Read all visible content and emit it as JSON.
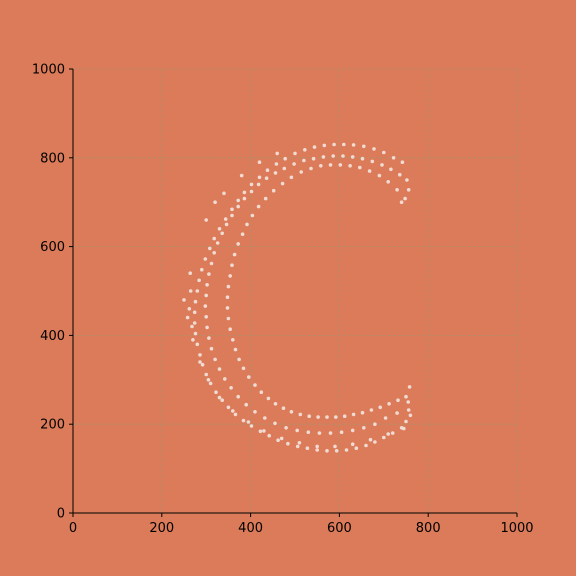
{
  "chart_data": {
    "type": "scatter",
    "title": "",
    "xlabel": "",
    "ylabel": "",
    "xlim": [
      0,
      1000
    ],
    "ylim": [
      0,
      1000
    ],
    "x_ticks": [
      "0",
      "200",
      "400",
      "600",
      "800",
      "1000"
    ],
    "y_ticks": [
      "0",
      "200",
      "400",
      "600",
      "800",
      "1000"
    ],
    "x_tick_values": [
      0,
      200,
      400,
      600,
      800,
      1000
    ],
    "y_tick_values": [
      0,
      200,
      400,
      600,
      800,
      1000
    ],
    "grid": true,
    "point_color": "#f2e6e0",
    "background_color": "#dc7b59",
    "series": [
      {
        "shape": "letter C",
        "points": [
          [
            742,
            790
          ],
          [
            722,
            800
          ],
          [
            700,
            812
          ],
          [
            678,
            820
          ],
          [
            655,
            826
          ],
          [
            632,
            829
          ],
          [
            610,
            830
          ],
          [
            588,
            830
          ],
          [
            566,
            828
          ],
          [
            544,
            824
          ],
          [
            522,
            818
          ],
          [
            500,
            810
          ],
          [
            478,
            798
          ],
          [
            458,
            786
          ],
          [
            438,
            772
          ],
          [
            420,
            756
          ],
          [
            402,
            740
          ],
          [
            386,
            722
          ],
          [
            372,
            704
          ],
          [
            358,
            684
          ],
          [
            344,
            662
          ],
          [
            330,
            640
          ],
          [
            318,
            618
          ],
          [
            308,
            596
          ],
          [
            298,
            572
          ],
          [
            290,
            548
          ],
          [
            284,
            524
          ],
          [
            280,
            500
          ],
          [
            276,
            476
          ],
          [
            274,
            452
          ],
          [
            274,
            428
          ],
          [
            276,
            404
          ],
          [
            280,
            380
          ],
          [
            286,
            356
          ],
          [
            292,
            334
          ],
          [
            300,
            312
          ],
          [
            310,
            292
          ],
          [
            322,
            272
          ],
          [
            336,
            254
          ],
          [
            350,
            238
          ],
          [
            366,
            222
          ],
          [
            384,
            208
          ],
          [
            402,
            196
          ],
          [
            422,
            184
          ],
          [
            442,
            174
          ],
          [
            462,
            164
          ],
          [
            484,
            156
          ],
          [
            506,
            150
          ],
          [
            528,
            146
          ],
          [
            550,
            142
          ],
          [
            572,
            140
          ],
          [
            594,
            140
          ],
          [
            616,
            142
          ],
          [
            638,
            146
          ],
          [
            660,
            152
          ],
          [
            680,
            160
          ],
          [
            700,
            170
          ],
          [
            720,
            180
          ],
          [
            740,
            192
          ],
          [
            750,
            206
          ],
          [
            748,
            708
          ],
          [
            730,
            728
          ],
          [
            710,
            746
          ],
          [
            690,
            760
          ],
          [
            668,
            770
          ],
          [
            646,
            778
          ],
          [
            624,
            782
          ],
          [
            602,
            784
          ],
          [
            580,
            784
          ],
          [
            558,
            782
          ],
          [
            536,
            776
          ],
          [
            514,
            768
          ],
          [
            492,
            756
          ],
          [
            472,
            742
          ],
          [
            452,
            726
          ],
          [
            434,
            708
          ],
          [
            418,
            690
          ],
          [
            404,
            670
          ],
          [
            392,
            650
          ],
          [
            382,
            628
          ],
          [
            372,
            606
          ],
          [
            364,
            582
          ],
          [
            358,
            558
          ],
          [
            354,
            534
          ],
          [
            350,
            510
          ],
          [
            348,
            486
          ],
          [
            348,
            462
          ],
          [
            350,
            438
          ],
          [
            354,
            414
          ],
          [
            360,
            390
          ],
          [
            366,
            368
          ],
          [
            374,
            346
          ],
          [
            384,
            326
          ],
          [
            396,
            306
          ],
          [
            410,
            288
          ],
          [
            424,
            272
          ],
          [
            440,
            258
          ],
          [
            456,
            246
          ],
          [
            474,
            236
          ],
          [
            492,
            228
          ],
          [
            512,
            222
          ],
          [
            532,
            218
          ],
          [
            552,
            216
          ],
          [
            572,
            216
          ],
          [
            592,
            216
          ],
          [
            612,
            218
          ],
          [
            632,
            222
          ],
          [
            652,
            226
          ],
          [
            672,
            232
          ],
          [
            692,
            238
          ],
          [
            712,
            246
          ],
          [
            732,
            254
          ],
          [
            750,
            262
          ],
          [
            758,
            284
          ],
          [
            756,
            232
          ],
          [
            704,
            214
          ],
          [
            680,
            200
          ],
          [
            655,
            192
          ],
          [
            630,
            186
          ],
          [
            605,
            182
          ],
          [
            580,
            180
          ],
          [
            555,
            180
          ],
          [
            530,
            182
          ],
          [
            505,
            186
          ],
          [
            480,
            192
          ],
          [
            455,
            202
          ],
          [
            432,
            214
          ],
          [
            410,
            228
          ],
          [
            390,
            244
          ],
          [
            372,
            262
          ],
          [
            356,
            282
          ],
          [
            342,
            302
          ],
          [
            330,
            324
          ],
          [
            320,
            346
          ],
          [
            312,
            370
          ],
          [
            306,
            394
          ],
          [
            302,
            418
          ],
          [
            300,
            442
          ],
          [
            298,
            466
          ],
          [
            300,
            490
          ],
          [
            302,
            514
          ],
          [
            306,
            538
          ],
          [
            312,
            562
          ],
          [
            318,
            586
          ],
          [
            326,
            608
          ],
          [
            336,
            630
          ],
          [
            346,
            650
          ],
          [
            358,
            670
          ],
          [
            372,
            690
          ],
          [
            386,
            708
          ],
          [
            402,
            724
          ],
          [
            418,
            740
          ],
          [
            436,
            754
          ],
          [
            456,
            766
          ],
          [
            476,
            776
          ],
          [
            498,
            786
          ],
          [
            520,
            794
          ],
          [
            542,
            798
          ],
          [
            564,
            802
          ],
          [
            586,
            804
          ],
          [
            608,
            804
          ],
          [
            630,
            802
          ],
          [
            652,
            798
          ],
          [
            674,
            792
          ],
          [
            696,
            784
          ],
          [
            716,
            774
          ],
          [
            736,
            762
          ],
          [
            752,
            750
          ],
          [
            756,
            728
          ],
          [
            740,
            700
          ],
          [
            265,
            500
          ],
          [
            262,
            460
          ],
          [
            268,
            420
          ],
          [
            264,
            540
          ],
          [
            320,
            700
          ],
          [
            300,
            660
          ],
          [
            340,
            720
          ],
          [
            380,
            760
          ],
          [
            420,
            790
          ],
          [
            460,
            810
          ],
          [
            250,
            480
          ],
          [
            258,
            440
          ],
          [
            270,
            390
          ],
          [
            286,
            340
          ],
          [
            305,
            300
          ],
          [
            330,
            260
          ],
          [
            360,
            230
          ],
          [
            395,
            205
          ],
          [
            430,
            185
          ],
          [
            470,
            168
          ],
          [
            510,
            158
          ],
          [
            550,
            150
          ],
          [
            590,
            150
          ],
          [
            630,
            155
          ],
          [
            670,
            165
          ],
          [
            710,
            178
          ],
          [
            745,
            190
          ],
          [
            760,
            220
          ],
          [
            755,
            250
          ],
          [
            730,
            225
          ]
        ]
      }
    ]
  }
}
